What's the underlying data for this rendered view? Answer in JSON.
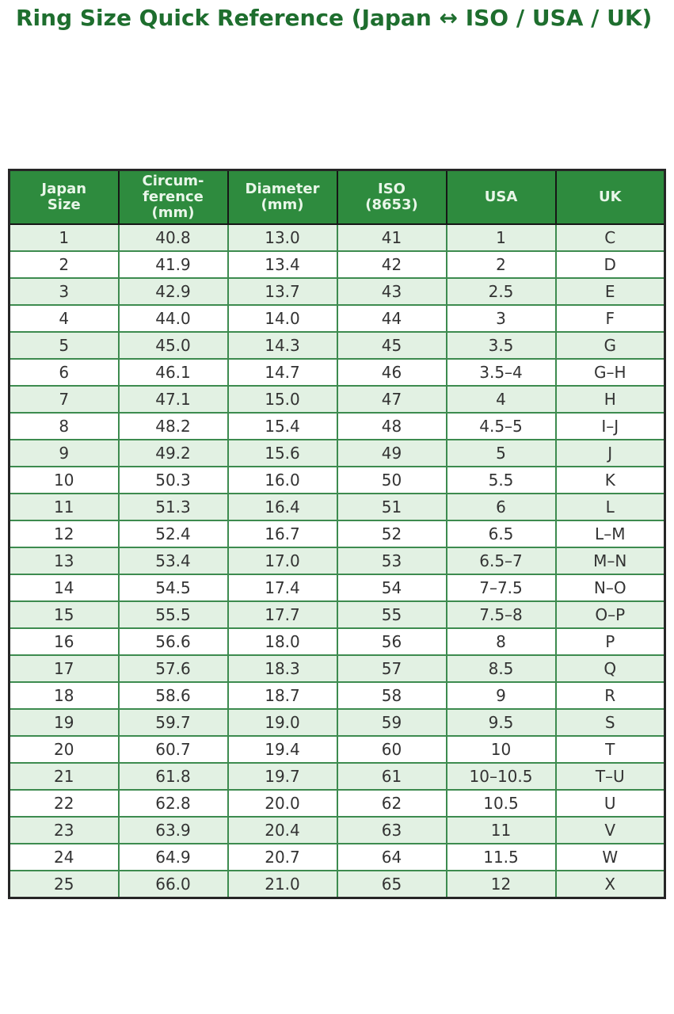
{
  "page_title": "Ring Size Quick Reference (Japan ↔ ISO / USA / UK)",
  "colors": {
    "title_text": "#1e6e2e",
    "header_background": "#2e8b3e",
    "header_text": "#e9f6e9",
    "header_border": "#161616",
    "outer_border": "#262626",
    "body_cell_border": "#3d8b4f",
    "body_cell_text": "#333333",
    "row_alternate_light_green": "#e2f1e3",
    "row_white": "#ffffff"
  },
  "chart_data": {
    "type": "table",
    "title": "Ring Size Quick Reference (Japan ↔ ISO / USA / UK)",
    "columns": [
      "Japan\nSize",
      "Circum-\nference\n(mm)",
      "Diameter\n(mm)",
      "ISO\n(8653)",
      "USA",
      "UK"
    ],
    "rows": [
      [
        "1",
        "40.8",
        "13.0",
        "41",
        "1",
        "C"
      ],
      [
        "2",
        "41.9",
        "13.4",
        "42",
        "2",
        "D"
      ],
      [
        "3",
        "42.9",
        "13.7",
        "43",
        "2.5",
        "E"
      ],
      [
        "4",
        "44.0",
        "14.0",
        "44",
        "3",
        "F"
      ],
      [
        "5",
        "45.0",
        "14.3",
        "45",
        "3.5",
        "G"
      ],
      [
        "6",
        "46.1",
        "14.7",
        "46",
        "3.5–4",
        "G–H"
      ],
      [
        "7",
        "47.1",
        "15.0",
        "47",
        "4",
        "H"
      ],
      [
        "8",
        "48.2",
        "15.4",
        "48",
        "4.5–5",
        "I–J"
      ],
      [
        "9",
        "49.2",
        "15.6",
        "49",
        "5",
        "J"
      ],
      [
        "10",
        "50.3",
        "16.0",
        "50",
        "5.5",
        "K"
      ],
      [
        "11",
        "51.3",
        "16.4",
        "51",
        "6",
        "L"
      ],
      [
        "12",
        "52.4",
        "16.7",
        "52",
        "6.5",
        "L–M"
      ],
      [
        "13",
        "53.4",
        "17.0",
        "53",
        "6.5–7",
        "M–N"
      ],
      [
        "14",
        "54.5",
        "17.4",
        "54",
        "7–7.5",
        "N–O"
      ],
      [
        "15",
        "55.5",
        "17.7",
        "55",
        "7.5–8",
        "O–P"
      ],
      [
        "16",
        "56.6",
        "18.0",
        "56",
        "8",
        "P"
      ],
      [
        "17",
        "57.6",
        "18.3",
        "57",
        "8.5",
        "Q"
      ],
      [
        "18",
        "58.6",
        "18.7",
        "58",
        "9",
        "R"
      ],
      [
        "19",
        "59.7",
        "19.0",
        "59",
        "9.5",
        "S"
      ],
      [
        "20",
        "60.7",
        "19.4",
        "60",
        "10",
        "T"
      ],
      [
        "21",
        "61.8",
        "19.7",
        "61",
        "10–10.5",
        "T–U"
      ],
      [
        "22",
        "62.8",
        "20.0",
        "62",
        "10.5",
        "U"
      ],
      [
        "23",
        "63.9",
        "20.4",
        "63",
        "11",
        "V"
      ],
      [
        "24",
        "64.9",
        "20.7",
        "64",
        "11.5",
        "W"
      ],
      [
        "25",
        "66.0",
        "21.0",
        "65",
        "12",
        "X"
      ]
    ]
  }
}
